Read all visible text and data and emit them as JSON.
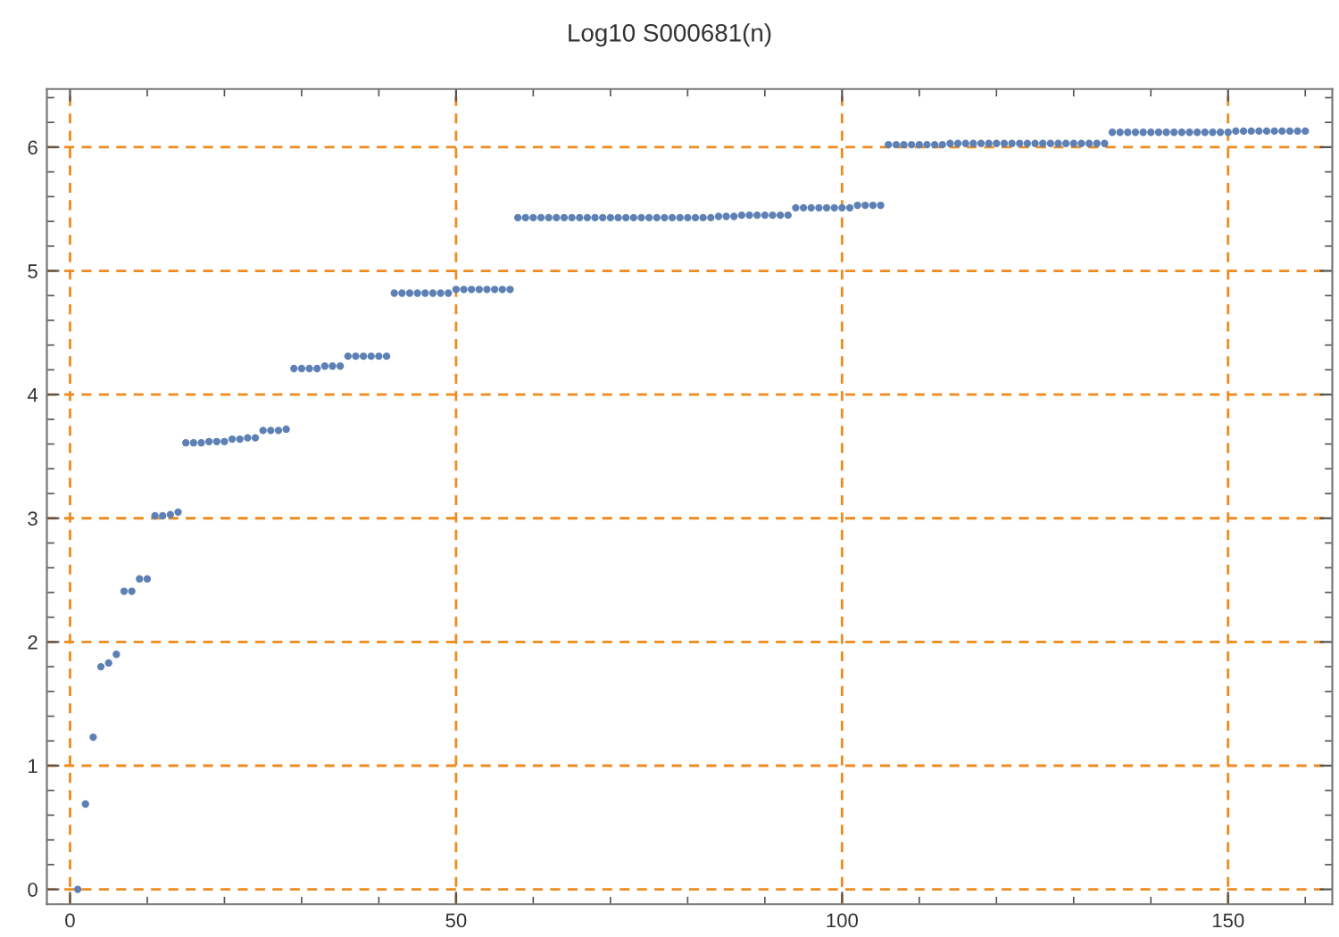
{
  "chart_data": {
    "type": "scatter",
    "title": "Log10 S000681(n)",
    "x": [
      1,
      2,
      3,
      4,
      5,
      6,
      7,
      8,
      9,
      10,
      11,
      12,
      13,
      14,
      15,
      16,
      17,
      18,
      19,
      20,
      21,
      22,
      23,
      24,
      25,
      26,
      27,
      28,
      29,
      30,
      31,
      32,
      33,
      34,
      35,
      36,
      37,
      38,
      39,
      40,
      41,
      42,
      43,
      44,
      45,
      46,
      47,
      48,
      49,
      50,
      51,
      52,
      53,
      54,
      55,
      56,
      57,
      58,
      59,
      60,
      61,
      62,
      63,
      64,
      65,
      66,
      67,
      68,
      69,
      70,
      71,
      72,
      73,
      74,
      75,
      76,
      77,
      78,
      79,
      80,
      81,
      82,
      83,
      84,
      85,
      86,
      87,
      88,
      89,
      90,
      91,
      92,
      93,
      94,
      95,
      96,
      97,
      98,
      99,
      100,
      101,
      102,
      103,
      104,
      105,
      106,
      107,
      108,
      109,
      110,
      111,
      112,
      113,
      114,
      115,
      116,
      117,
      118,
      119,
      120,
      121,
      122,
      123,
      124,
      125,
      126,
      127,
      128,
      129,
      130,
      131,
      132,
      133,
      134,
      135,
      136,
      137,
      138,
      139,
      140,
      141,
      142,
      143,
      144,
      145,
      146,
      147,
      148,
      149,
      150,
      151,
      152,
      153,
      154,
      155,
      156,
      157,
      158,
      159,
      160
    ],
    "series": [
      {
        "color": "#5e81b5",
        "values": [
          0,
          0.69,
          1.23,
          1.8,
          1.83,
          1.9,
          2.41,
          2.41,
          2.51,
          2.51,
          3.02,
          3.02,
          3.03,
          3.05,
          3.61,
          3.61,
          3.61,
          3.62,
          3.62,
          3.62,
          3.64,
          3.64,
          3.65,
          3.65,
          3.71,
          3.71,
          3.71,
          3.72,
          4.21,
          4.21,
          4.21,
          4.21,
          4.23,
          4.23,
          4.23,
          4.31,
          4.31,
          4.31,
          4.31,
          4.31,
          4.31,
          4.82,
          4.82,
          4.82,
          4.82,
          4.82,
          4.82,
          4.82,
          4.82,
          4.85,
          4.85,
          4.85,
          4.85,
          4.85,
          4.85,
          4.85,
          4.85,
          5.43,
          5.43,
          5.43,
          5.43,
          5.43,
          5.43,
          5.43,
          5.43,
          5.43,
          5.43,
          5.43,
          5.43,
          5.43,
          5.43,
          5.43,
          5.43,
          5.43,
          5.43,
          5.43,
          5.43,
          5.43,
          5.43,
          5.43,
          5.43,
          5.43,
          5.43,
          5.44,
          5.44,
          5.44,
          5.45,
          5.45,
          5.45,
          5.45,
          5.45,
          5.45,
          5.45,
          5.51,
          5.51,
          5.51,
          5.51,
          5.51,
          5.51,
          5.51,
          5.51,
          5.53,
          5.53,
          5.53,
          5.53,
          6.02,
          6.02,
          6.02,
          6.02,
          6.02,
          6.02,
          6.02,
          6.02,
          6.03,
          6.03,
          6.03,
          6.03,
          6.03,
          6.03,
          6.03,
          6.03,
          6.03,
          6.03,
          6.03,
          6.03,
          6.03,
          6.03,
          6.03,
          6.03,
          6.03,
          6.03,
          6.03,
          6.03,
          6.03,
          6.12,
          6.12,
          6.12,
          6.12,
          6.12,
          6.12,
          6.12,
          6.12,
          6.12,
          6.12,
          6.12,
          6.12,
          6.12,
          6.12,
          6.12,
          6.12,
          6.13,
          6.13,
          6.13,
          6.13,
          6.13,
          6.13,
          6.13,
          6.13,
          6.13,
          6.13
        ]
      }
    ],
    "xlim": [
      -3,
      163.5
    ],
    "xticks": [
      0,
      50,
      100,
      150
    ],
    "ylim": [
      -0.12,
      6.47
    ],
    "yticks": [
      0,
      1,
      2,
      3,
      4,
      5,
      6
    ],
    "grid": true,
    "marker": "circle"
  }
}
